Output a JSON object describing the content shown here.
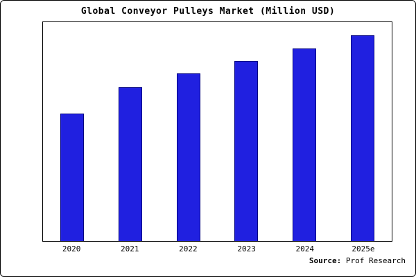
{
  "chart": {
    "title": "Global Conveyor Pulleys Market (Million USD)",
    "footer": {
      "source_label": "Source:",
      "source_text": " Prof Research"
    }
  },
  "chart_data": {
    "type": "bar",
    "title": "Global Conveyor Pulleys Market (Million USD)",
    "categories": [
      "2020",
      "2021",
      "2022",
      "2023",
      "2024",
      "2025e"
    ],
    "values": [
      620,
      748,
      815,
      875,
      936,
      1000
    ],
    "xlabel": "",
    "ylabel": "",
    "ylim": [
      0,
      1065
    ],
    "grid": false,
    "legend": false,
    "bar_color": "#2020e0",
    "bar_edge_color": "#000080",
    "frame_color": "#000000",
    "background_color": "#ffffff",
    "source_text": "Source: Prof Research"
  }
}
